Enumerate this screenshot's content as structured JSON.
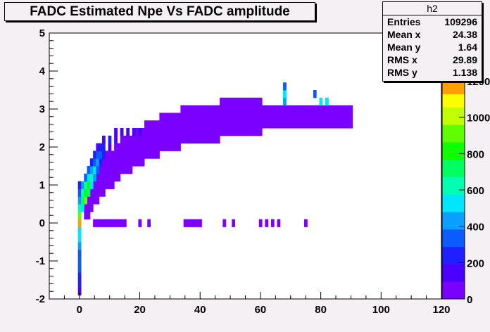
{
  "chart_data": {
    "type": "heatmap",
    "title": "FADC Estimated Npe Vs FADC amplitude",
    "xlim": [
      -10,
      120
    ],
    "ylim": [
      -2,
      5
    ],
    "x_ticks": [
      0,
      20,
      40,
      60,
      80,
      100,
      120
    ],
    "y_ticks": [
      -2,
      -1,
      0,
      1,
      2,
      3,
      4,
      5
    ],
    "colorbar": {
      "range": [
        0,
        1200
      ],
      "ticks": [
        0,
        200,
        400,
        600,
        800,
        1000,
        1200
      ],
      "tick_labels": [
        "0",
        "200",
        "400",
        "600",
        "800",
        "1000",
        "1200"
      ]
    },
    "stats": {
      "name": "h2",
      "rows": [
        {
          "label": "Entries",
          "value": "109296"
        },
        {
          "label": "Mean x",
          "value": "24.38"
        },
        {
          "label": "Mean y",
          "value": "1.64"
        },
        {
          "label": "RMS x",
          "value": "29.89"
        },
        {
          "label": "RMS y",
          "value": "1.138"
        }
      ]
    },
    "cells": [
      [
        0,
        -1.8,
        180
      ],
      [
        0,
        -1.6,
        220
      ],
      [
        0,
        -1.4,
        260
      ],
      [
        0,
        -1.2,
        300
      ],
      [
        0,
        -1.0,
        320
      ],
      [
        0,
        -0.8,
        360
      ],
      [
        0,
        -0.6,
        400
      ],
      [
        0,
        -0.4,
        480
      ],
      [
        0,
        -0.2,
        560
      ],
      [
        0,
        0.0,
        1150
      ],
      [
        0,
        0.2,
        900
      ],
      [
        0,
        0.4,
        600
      ],
      [
        0,
        0.6,
        420
      ],
      [
        0,
        0.8,
        300
      ],
      [
        0,
        1.0,
        200
      ],
      [
        1,
        0.4,
        500
      ],
      [
        1,
        0.6,
        700
      ],
      [
        1,
        0.8,
        650
      ],
      [
        1,
        1.0,
        400
      ],
      [
        2,
        0.6,
        900
      ],
      [
        2,
        0.8,
        820
      ],
      [
        2,
        1.0,
        600
      ],
      [
        2,
        1.2,
        350
      ],
      [
        3,
        0.8,
        700
      ],
      [
        3,
        1.0,
        780
      ],
      [
        3,
        1.2,
        520
      ],
      [
        3,
        1.4,
        300
      ],
      [
        4,
        1.0,
        560
      ],
      [
        4,
        1.2,
        640
      ],
      [
        4,
        1.4,
        460
      ],
      [
        4,
        1.6,
        260
      ],
      [
        5,
        1.2,
        460
      ],
      [
        5,
        1.4,
        520
      ],
      [
        5,
        1.6,
        380
      ],
      [
        5,
        1.8,
        200
      ],
      [
        6,
        1.4,
        360
      ],
      [
        6,
        1.6,
        420
      ],
      [
        6,
        1.8,
        300
      ],
      [
        6,
        2.0,
        160
      ],
      [
        7,
        1.6,
        280
      ],
      [
        7,
        1.8,
        330
      ],
      [
        7,
        2.0,
        220
      ],
      [
        8,
        1.8,
        220
      ],
      [
        8,
        2.0,
        260
      ],
      [
        8,
        2.2,
        160
      ],
      [
        10,
        2.0,
        170
      ],
      [
        10,
        2.2,
        200
      ],
      [
        12,
        2.2,
        150
      ],
      [
        12,
        2.4,
        140
      ],
      [
        14,
        2.4,
        140
      ],
      [
        16,
        2.4,
        130
      ],
      [
        18,
        2.4,
        120
      ],
      [
        20,
        2.4,
        120
      ],
      [
        68,
        3.2,
        420
      ],
      [
        68,
        3.4,
        520
      ],
      [
        68,
        3.6,
        300
      ],
      [
        80,
        3.2,
        520
      ],
      [
        82,
        3.2,
        560
      ],
      [
        78,
        3.4,
        320
      ],
      [
        5,
        0,
        80
      ],
      [
        6,
        0,
        80
      ],
      [
        7,
        0,
        80
      ],
      [
        8,
        0,
        80
      ],
      [
        9,
        0,
        80
      ],
      [
        10,
        0,
        80
      ],
      [
        11,
        0,
        80
      ],
      [
        12,
        0,
        80
      ],
      [
        13,
        0,
        80
      ],
      [
        14,
        0,
        80
      ],
      [
        15,
        0,
        80
      ],
      [
        20,
        0,
        80
      ],
      [
        23,
        0,
        80
      ],
      [
        35,
        0,
        80
      ],
      [
        36,
        0,
        80
      ],
      [
        37,
        0,
        80
      ],
      [
        38,
        0,
        80
      ],
      [
        39,
        0,
        80
      ],
      [
        40,
        0,
        80
      ],
      [
        48,
        0,
        80
      ],
      [
        51,
        0,
        80
      ],
      [
        60,
        0,
        80
      ],
      [
        62,
        0,
        80
      ],
      [
        64,
        0,
        80
      ],
      [
        66,
        0,
        80
      ],
      [
        75,
        0,
        80
      ]
    ]
  }
}
